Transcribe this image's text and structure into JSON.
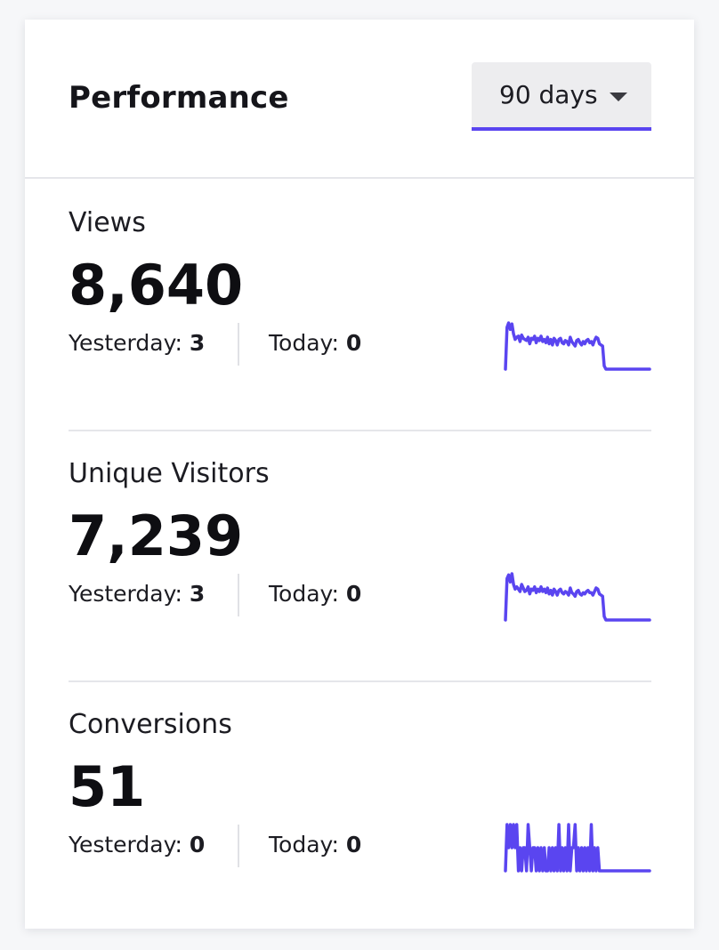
{
  "header": {
    "title": "Performance",
    "range_select": {
      "value": "90 days"
    }
  },
  "colors": {
    "accent": "#5a45f0",
    "divider": "#e5e6ea"
  },
  "icons": {
    "range_caret": "caret-down-icon"
  },
  "metrics": [
    {
      "label": "Views",
      "value": "8,640",
      "yesterday_label": "Yesterday:",
      "yesterday": "3",
      "today_label": "Today:",
      "today": "0",
      "trend": [
        0,
        38,
        42,
        36,
        41,
        32,
        27,
        29,
        30,
        25,
        31,
        28,
        27,
        26,
        29,
        23,
        28,
        27,
        30,
        24,
        28,
        26,
        30,
        25,
        27,
        24,
        29,
        23,
        27,
        22,
        28,
        26,
        22,
        27,
        28,
        24,
        23,
        26,
        25,
        22,
        29,
        25,
        23,
        21,
        26,
        27,
        24,
        22,
        25,
        23,
        26,
        27,
        24,
        25,
        22,
        26,
        29,
        28,
        23,
        22,
        21,
        3,
        0,
        0,
        0,
        0,
        0,
        0,
        0,
        0,
        0,
        0,
        0,
        0,
        0,
        0,
        0,
        0,
        0,
        0,
        0,
        0,
        0,
        0,
        0,
        0,
        0,
        0,
        0,
        0
      ]
    },
    {
      "label": "Unique Visitors",
      "value": "7,239",
      "yesterday_label": "Yesterday:",
      "yesterday": "3",
      "today_label": "Today:",
      "today": "0",
      "trend": [
        0,
        35,
        38,
        32,
        39,
        30,
        26,
        28,
        26,
        24,
        30,
        27,
        24,
        25,
        28,
        22,
        26,
        25,
        28,
        23,
        26,
        24,
        28,
        24,
        26,
        23,
        27,
        22,
        25,
        21,
        26,
        24,
        21,
        25,
        26,
        23,
        22,
        24,
        23,
        21,
        27,
        23,
        22,
        20,
        24,
        25,
        22,
        21,
        23,
        22,
        24,
        25,
        23,
        23,
        21,
        24,
        27,
        26,
        22,
        21,
        20,
        3,
        0,
        0,
        0,
        0,
        0,
        0,
        0,
        0,
        0,
        0,
        0,
        0,
        0,
        0,
        0,
        0,
        0,
        0,
        0,
        0,
        0,
        0,
        0,
        0,
        0,
        0,
        0,
        0
      ]
    },
    {
      "label": "Conversions",
      "value": "51",
      "yesterday_label": "Yesterday:",
      "yesterday": "0",
      "today_label": "Today:",
      "today": "0",
      "trend": [
        0,
        2,
        1,
        2,
        1,
        2,
        1,
        2,
        0,
        1,
        0,
        1,
        1,
        0,
        2,
        1,
        0,
        1,
        1,
        0,
        1,
        0,
        1,
        0,
        1,
        0,
        0,
        1,
        0,
        1,
        0,
        1,
        0,
        2,
        0,
        1,
        0,
        1,
        0,
        2,
        0,
        1,
        1,
        2,
        0,
        1,
        0,
        1,
        0,
        1,
        0,
        1,
        0,
        2,
        0,
        1,
        0,
        1,
        0,
        0,
        0,
        0,
        0,
        0,
        0,
        0,
        0,
        0,
        0,
        0,
        0,
        0,
        0,
        0,
        0,
        0,
        0,
        0,
        0,
        0,
        0,
        0,
        0,
        0,
        0,
        0,
        0,
        0,
        0,
        0
      ]
    }
  ]
}
